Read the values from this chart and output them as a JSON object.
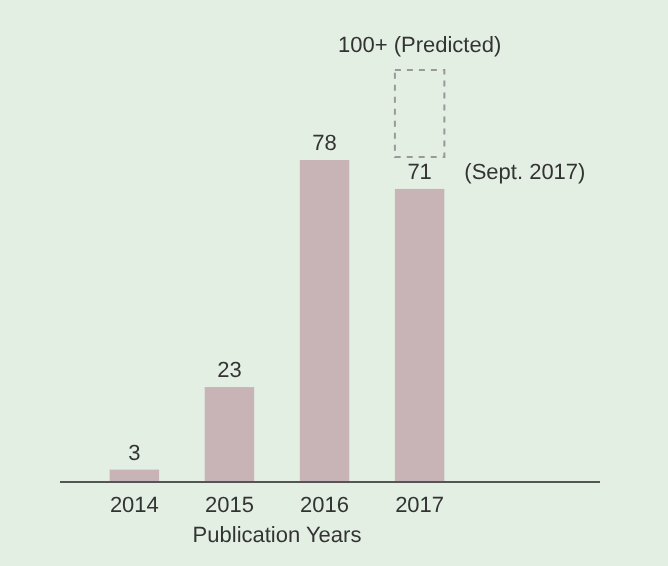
{
  "chart_data": {
    "type": "bar",
    "xlabel": "Publication Years",
    "categories": [
      "2014",
      "2015",
      "2016",
      "2017"
    ],
    "values": [
      3,
      23,
      78,
      71
    ],
    "color": "#c8b4b7",
    "data_labels": true,
    "annotations": [
      "100+ (Predicted)",
      {
        "text": "(Sept. 2017)",
        "x": "2017",
        "y": 71
      }
    ]
  }
}
